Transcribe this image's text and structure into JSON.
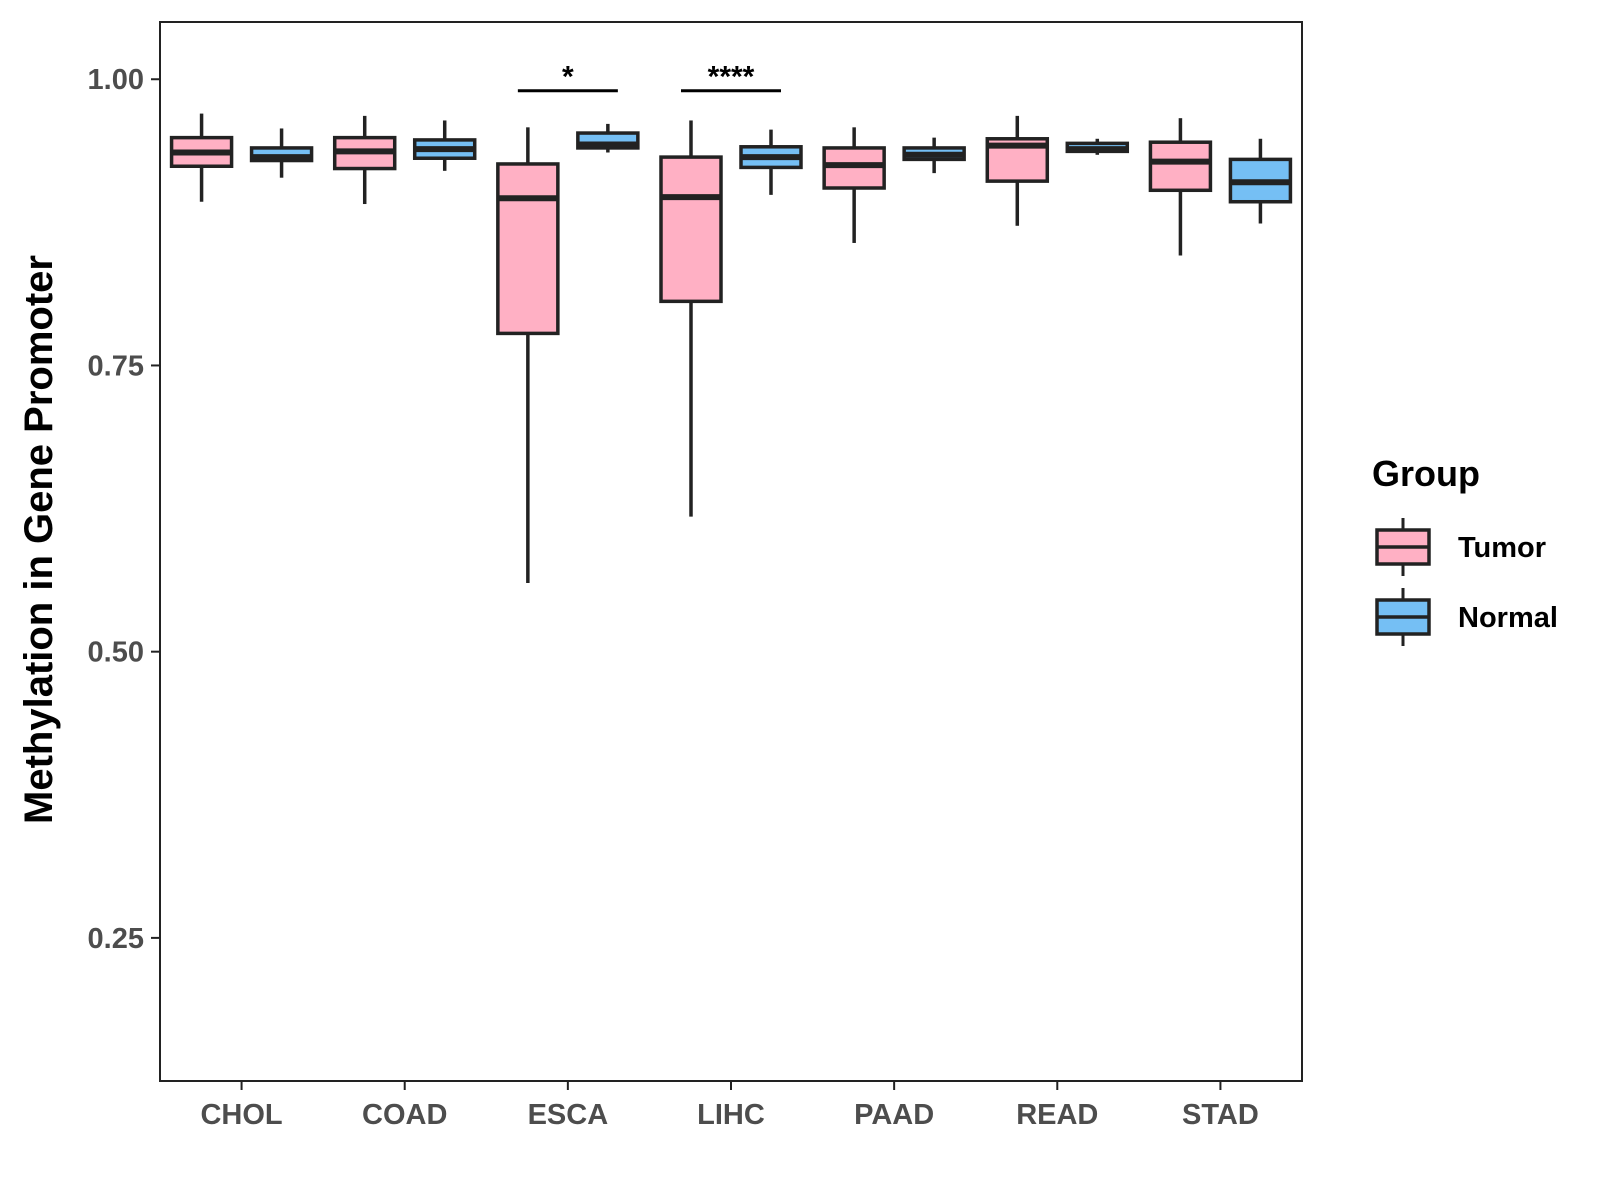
{
  "chart_data": {
    "type": "boxplot",
    "title": "",
    "xlabel": "",
    "ylabel": "Methylation in Gene Promoter",
    "ylim": [
      0.125,
      1.05
    ],
    "yticks": [
      0.25,
      0.5,
      0.75,
      1.0
    ],
    "ytick_labels": [
      "0.25",
      "0.50",
      "0.75",
      "1.00"
    ],
    "categories": [
      "CHOL",
      "COAD",
      "ESCA",
      "LIHC",
      "PAAD",
      "READ",
      "STAD"
    ],
    "legend": {
      "title": "Group",
      "position": "right",
      "entries": [
        {
          "name": "Tumor",
          "color": "#ffb0c4"
        },
        {
          "name": "Normal",
          "color": "#75bff4"
        }
      ]
    },
    "series": [
      {
        "name": "Tumor",
        "color": "#ffb0c4",
        "boxes": [
          {
            "category": "CHOL",
            "min": 0.893,
            "q1": 0.924,
            "median": 0.936,
            "q3": 0.949,
            "max": 0.97
          },
          {
            "category": "COAD",
            "min": 0.891,
            "q1": 0.922,
            "median": 0.937,
            "q3": 0.949,
            "max": 0.968
          },
          {
            "category": "ESCA",
            "min": 0.56,
            "q1": 0.778,
            "median": 0.896,
            "q3": 0.926,
            "max": 0.958
          },
          {
            "category": "LIHC",
            "min": 0.618,
            "q1": 0.806,
            "median": 0.897,
            "q3": 0.932,
            "max": 0.964
          },
          {
            "category": "PAAD",
            "min": 0.857,
            "q1": 0.905,
            "median": 0.925,
            "q3": 0.94,
            "max": 0.958
          },
          {
            "category": "READ",
            "min": 0.872,
            "q1": 0.911,
            "median": 0.942,
            "q3": 0.948,
            "max": 0.968
          },
          {
            "category": "STAD",
            "min": 0.846,
            "q1": 0.903,
            "median": 0.928,
            "q3": 0.945,
            "max": 0.966
          }
        ]
      },
      {
        "name": "Normal",
        "color": "#75bff4",
        "boxes": [
          {
            "category": "CHOL",
            "min": 0.914,
            "q1": 0.929,
            "median": 0.932,
            "q3": 0.94,
            "max": 0.957
          },
          {
            "category": "COAD",
            "min": 0.92,
            "q1": 0.931,
            "median": 0.939,
            "q3": 0.947,
            "max": 0.964
          },
          {
            "category": "ESCA",
            "min": 0.936,
            "q1": 0.94,
            "median": 0.943,
            "q3": 0.953,
            "max": 0.961
          },
          {
            "category": "LIHC",
            "min": 0.899,
            "q1": 0.923,
            "median": 0.932,
            "q3": 0.941,
            "max": 0.956
          },
          {
            "category": "PAAD",
            "min": 0.918,
            "q1": 0.93,
            "median": 0.934,
            "q3": 0.94,
            "max": 0.949
          },
          {
            "category": "READ",
            "min": 0.934,
            "q1": 0.937,
            "median": 0.939,
            "q3": 0.944,
            "max": 0.948
          },
          {
            "category": "STAD",
            "min": 0.874,
            "q1": 0.893,
            "median": 0.91,
            "q3": 0.93,
            "max": 0.948
          }
        ]
      }
    ],
    "annotations": [
      {
        "category": "ESCA",
        "label": "*",
        "y": 0.99
      },
      {
        "category": "LIHC",
        "label": "****",
        "y": 0.99
      }
    ]
  },
  "colors": {
    "box_outline": "#222222",
    "panel_border": "#222222",
    "tick_text": "#4d4d4d"
  }
}
